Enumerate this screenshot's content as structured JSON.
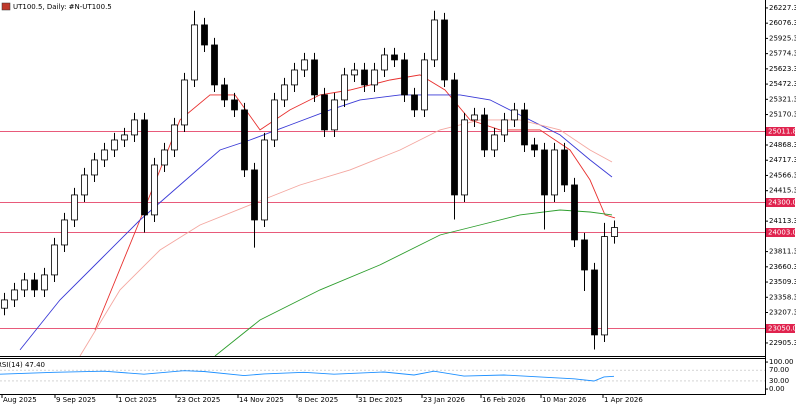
{
  "chart_data": {
    "type": "candlestick",
    "title": "UT100.5, Daily: #N-UT100.5",
    "up_color": "#ffffff",
    "down_color": "#000000",
    "xlim": [
      -0.4,
      76.1
    ],
    "ylim": [
      22776,
      26306
    ],
    "open": [
      23250,
      23332,
      23431,
      23530,
      23431,
      23580,
      23877,
      24125,
      24373,
      24571,
      24720,
      24819,
      24918,
      24968,
      25117,
      24175,
      24670,
      24819,
      25067,
      25513,
      26059,
      25860,
      25464,
      25315,
      25216,
      24621,
      24125,
      24918,
      25315,
      25464,
      25612,
      25712,
      25365,
      25018,
      25315,
      25563,
      25612,
      25464,
      25612,
      25761,
      25712,
      25365,
      25216,
      25712,
      26108,
      25513,
      24373,
      25117,
      25166,
      24819,
      24968,
      25117,
      25216,
      24869,
      24819,
      24373,
      24819,
      24472,
      23927,
      23629,
      22985,
      23960
    ],
    "high": [
      23402,
      23501,
      23600,
      23600,
      23650,
      23947,
      24195,
      24443,
      24641,
      24790,
      24889,
      24988,
      25038,
      25187,
      25187,
      24740,
      24889,
      25137,
      25583,
      26200,
      26129,
      25930,
      25534,
      25385,
      25286,
      24691,
      24988,
      25385,
      25534,
      25682,
      25782,
      25782,
      25435,
      25385,
      25633,
      25682,
      25682,
      25682,
      25831,
      25831,
      25782,
      25435,
      25782,
      26200,
      26178,
      25583,
      25187,
      25236,
      25236,
      25038,
      25187,
      25286,
      25286,
      24939,
      24889,
      24889,
      24889,
      24542,
      23997,
      23699,
      24096,
      24120
    ],
    "low": [
      23180,
      23262,
      23361,
      23361,
      23361,
      23510,
      23807,
      24055,
      24303,
      24501,
      24650,
      24749,
      24848,
      24898,
      24000,
      24105,
      24600,
      24749,
      24997,
      25443,
      25790,
      25394,
      25245,
      25146,
      24551,
      23850,
      24055,
      24848,
      25245,
      25394,
      25542,
      25295,
      24948,
      24948,
      25245,
      25493,
      25394,
      25394,
      25542,
      25642,
      25295,
      25146,
      25146,
      25642,
      25443,
      24130,
      24303,
      25047,
      24749,
      24749,
      24898,
      25047,
      24799,
      24749,
      24030,
      24303,
      24402,
      23857,
      23420,
      22840,
      22915,
      23890
    ],
    "close": [
      23332,
      23431,
      23530,
      23431,
      23580,
      23877,
      24125,
      24373,
      24571,
      24720,
      24819,
      24918,
      24968,
      25117,
      24175,
      24670,
      24819,
      25067,
      25513,
      26059,
      25860,
      25464,
      25315,
      25216,
      24621,
      24125,
      24918,
      25315,
      25464,
      25612,
      25712,
      25365,
      25018,
      25315,
      25563,
      25612,
      25464,
      25612,
      25761,
      25712,
      25365,
      25216,
      25712,
      26108,
      25513,
      24373,
      25117,
      25166,
      24819,
      24968,
      25117,
      25216,
      24869,
      24819,
      24373,
      24819,
      24472,
      23927,
      23629,
      22985,
      23960,
      24050
    ],
    "yticks": [
      26227.3,
      26076.3,
      25925.3,
      25774.3,
      25623.3,
      25472.3,
      25321.3,
      25170.3,
      24868.3,
      24717.3,
      24566.3,
      24415.3,
      24113.3,
      23811.3,
      23660.3,
      23509.3,
      23358.3,
      23207.3,
      22905.3
    ],
    "xticks": [
      {
        "value": -0.2,
        "label": "Aug 2025"
      },
      {
        "value": 5.1,
        "label": "9 Sep 2025"
      },
      {
        "value": 11.3,
        "label": "1 Oct 2025"
      },
      {
        "value": 17.2,
        "label": "23 Oct 2025"
      },
      {
        "value": 23.4,
        "label": "14 Nov 2025"
      },
      {
        "value": 29.3,
        "label": "8 Dec 2025"
      },
      {
        "value": 35.3,
        "label": "31 Dec 2025"
      },
      {
        "value": 41.8,
        "label": "23 Jan 2026"
      },
      {
        "value": 47.7,
        "label": "16 Feb 2026"
      },
      {
        "value": 53.7,
        "label": "10 Mar 2026"
      },
      {
        "value": 59.9,
        "label": "1 Apr 2026"
      }
    ],
    "level_color": "#e0234e",
    "levels": [
      {
        "value": 25011.8,
        "label": "25011.8"
      },
      {
        "value": 24300,
        "label": "24300.0"
      },
      {
        "value": 24003,
        "label": "24003.0"
      },
      {
        "value": 23050,
        "label": "23050.0"
      }
    ],
    "lines": [
      {
        "color": "#e8312f",
        "x": [
          9.1,
          13.6,
          17.6,
          20.6,
          23.1,
          25.6,
          28.6,
          31.6,
          34.6,
          38.6,
          41.6,
          44.1,
          46.6,
          49.6,
          53.6,
          56.6,
          58.6,
          60.1,
          61.1
        ],
        "values": [
          23034,
          24125,
          25117,
          25365,
          25365,
          25018,
          25216,
          25365,
          25414,
          25513,
          25563,
          25414,
          25117,
          25018,
          25018,
          24819,
          24522,
          24175,
          24145
        ]
      },
      {
        "color": "#3a3ad6",
        "x": [
          1.6,
          5.6,
          9.6,
          13.6,
          17.6,
          21.6,
          24.6,
          28.6,
          32.6,
          35.6,
          39.6,
          42.6,
          45.6,
          48.6,
          51.6,
          55.6,
          58.6,
          60.8
        ],
        "values": [
          22836,
          23332,
          23728,
          24125,
          24472,
          24819,
          24918,
          25067,
          25216,
          25315,
          25365,
          25365,
          25365,
          25315,
          25166,
          24968,
          24720,
          24551
        ]
      },
      {
        "color": "#f4a7a0",
        "x": [
          7.6,
          11.6,
          15.6,
          19.6,
          24.6,
          29.6,
          34.6,
          39.6,
          43.6,
          47.6,
          51.6,
          55.6,
          58.6,
          60.8
        ],
        "values": [
          22776,
          23431,
          23827,
          24075,
          24274,
          24472,
          24621,
          24819,
          25018,
          25117,
          25117,
          25018,
          24819,
          24700
        ]
      },
      {
        "color": "#2e9e2e",
        "x": [
          21.1,
          25.6,
          31.6,
          37.6,
          43.6,
          47.6,
          51.6,
          55.6,
          58.6,
          60.8
        ],
        "values": [
          22776,
          23133,
          23431,
          23679,
          23976,
          24075,
          24175,
          24224,
          24204,
          24175
        ]
      }
    ],
    "rsi": {
      "label": "RSI(14) 47.40",
      "color": "#1e90ff",
      "ylim": [
        -22,
        115
      ],
      "yticks": [
        {
          "value": 100,
          "label": "100.00"
        },
        {
          "value": 70,
          "label": "70.00"
        },
        {
          "value": 30,
          "label": "30.00"
        },
        {
          "value": 0,
          "label": "0.00"
        }
      ],
      "x": [
        -0.4,
        5,
        10,
        14,
        18,
        20,
        24,
        26,
        30,
        33,
        38,
        41,
        43,
        46,
        50,
        54,
        57,
        59,
        60,
        61
      ],
      "values": [
        55,
        62,
        66,
        55,
        68,
        65,
        50,
        56,
        62,
        55,
        63,
        52,
        66,
        48,
        52,
        44,
        38,
        30,
        45,
        47.4
      ]
    }
  }
}
